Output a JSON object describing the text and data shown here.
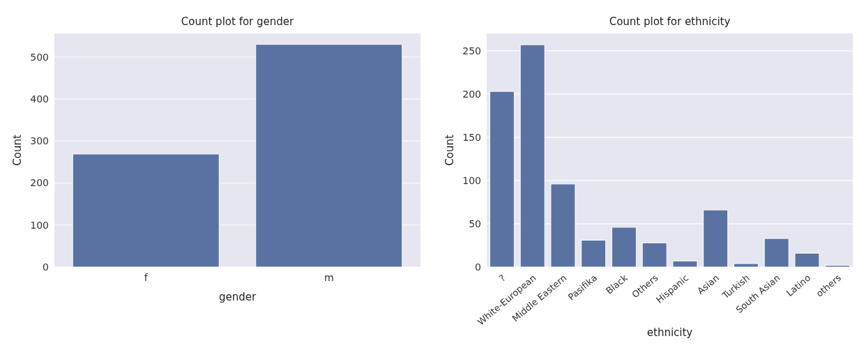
{
  "chart_data": [
    {
      "type": "bar",
      "title": "Count plot for gender",
      "xlabel": "gender",
      "ylabel": "Count",
      "categories": [
        "f",
        "m"
      ],
      "values": [
        269,
        530
      ],
      "color": "#5a72a2",
      "ylim": [
        0,
        556
      ],
      "yticks": [
        0,
        100,
        200,
        300,
        400,
        500
      ],
      "grid": true
    },
    {
      "type": "bar",
      "title": "Count plot for ethnicity",
      "xlabel": "ethnicity",
      "ylabel": "Count",
      "categories": [
        "?",
        "White-European",
        "Middle Eastern ",
        "Pasifika",
        "Black",
        "Others",
        "Hispanic",
        "Asian",
        "Turkish",
        "South Asian",
        "Latino",
        "others"
      ],
      "values": [
        203,
        257,
        96,
        31,
        46,
        28,
        7,
        66,
        4,
        33,
        16,
        2
      ],
      "color": "#5a72a2",
      "ylim": [
        0,
        270
      ],
      "yticks": [
        0,
        50,
        100,
        150,
        200,
        250
      ],
      "grid": true
    }
  ]
}
